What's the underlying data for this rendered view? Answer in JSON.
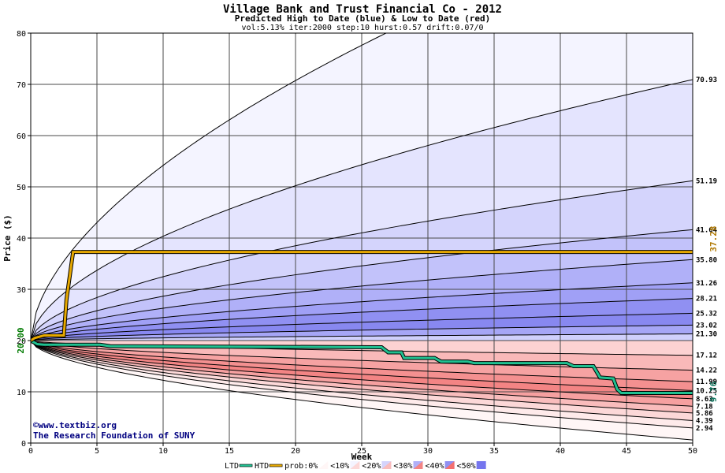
{
  "chart_data": {
    "type": "area",
    "title": "Village Bank and Trust Financial Co - 2012",
    "subtitle": "Predicted High to Date (blue) &  Low to Date (red)",
    "params": "vol:5.13% iter:2000 step:10 hurst:0.57 drift:0.07/0",
    "xlabel": "Week",
    "ylabel": "Price ($)",
    "xlim": [
      0,
      50
    ],
    "ylim": [
      0,
      80
    ],
    "x_ticks": [
      "0",
      "5",
      "10",
      "15",
      "20",
      "25",
      "30",
      "35",
      "40",
      "45",
      "50"
    ],
    "y_ticks": [
      "0",
      "10",
      "20",
      "30",
      "40",
      "50",
      "60",
      "70",
      "80"
    ],
    "grid": true,
    "start_price": 20,
    "start_label": "20.00",
    "high_curves": [
      {
        "label": "",
        "end": 130,
        "scale": 9.2
      },
      {
        "label": "70.93",
        "end": 70.93
      },
      {
        "label": "51.19",
        "end": 51.19
      },
      {
        "label": "41.64",
        "end": 41.64
      },
      {
        "label": "35.80",
        "end": 35.8
      },
      {
        "label": "31.26",
        "end": 31.26
      },
      {
        "label": "28.21",
        "end": 28.21
      },
      {
        "label": "25.32",
        "end": 25.32
      },
      {
        "label": "23.02",
        "end": 23.02
      },
      {
        "label": "21.30",
        "end": 21.3
      }
    ],
    "low_curves": [
      {
        "label": "17.12",
        "end": 17.12
      },
      {
        "label": "14.22",
        "end": 14.22
      },
      {
        "label": "11.99",
        "end": 11.99
      },
      {
        "label": "10.25",
        "end": 10.25
      },
      {
        "label": "8.63",
        "end": 8.63
      },
      {
        "label": "7.18",
        "end": 7.18
      },
      {
        "label": "5.86",
        "end": 5.86
      },
      {
        "label": "4.39",
        "end": 4.39
      },
      {
        "label": "2.94",
        "end": 2.94
      },
      {
        "label": "",
        "end": 0.6
      }
    ],
    "htd_series": {
      "name": "HTD",
      "value_label": "37.28",
      "color": "#e6a800",
      "points": [
        [
          0,
          20
        ],
        [
          0.3,
          20.5
        ],
        [
          1,
          21
        ],
        [
          2.5,
          21
        ],
        [
          2.7,
          28
        ],
        [
          3.2,
          37.28
        ],
        [
          50,
          37.28
        ]
      ]
    },
    "ltd_series": {
      "name": "LTD",
      "value_label": "9.76",
      "color": "#20c090",
      "points": [
        [
          0,
          20
        ],
        [
          0.5,
          19.3
        ],
        [
          1,
          19.2
        ],
        [
          5.2,
          19.2
        ],
        [
          6,
          18.9
        ],
        [
          26.5,
          18.7
        ],
        [
          27,
          17.7
        ],
        [
          28,
          17.7
        ],
        [
          28.2,
          16.6
        ],
        [
          30.5,
          16.6
        ],
        [
          31,
          15.9
        ],
        [
          33,
          15.9
        ],
        [
          33.5,
          15.6
        ],
        [
          40.5,
          15.6
        ],
        [
          41,
          15
        ],
        [
          42.5,
          15
        ],
        [
          43,
          12.8
        ],
        [
          44,
          12.6
        ],
        [
          44.3,
          10.5
        ],
        [
          44.6,
          9.76
        ],
        [
          50,
          9.76
        ]
      ]
    },
    "band_colors": {
      "high": [
        "#f4f4ff",
        "#e4e4fe",
        "#d4d4fc",
        "#c2c2fa",
        "#b0b0f8",
        "#a0a0f6",
        "#9090f2",
        "#8888f0",
        "#a6a6f6",
        "#d0d0fc"
      ],
      "low": [
        "#fcd2d2",
        "#f9b9b9",
        "#f6a2a2",
        "#f49090",
        "#f38484",
        "#f6a0a0",
        "#f9bcbc",
        "#fcd8d8",
        "#feeaea",
        "#fff6f6"
      ]
    },
    "legend": {
      "items": [
        {
          "label": "LTD",
          "swatch": "#20c090"
        },
        {
          "label": "HTD",
          "swatch": "#e6a800"
        },
        {
          "label": "prob:0%",
          "swatch": "#ffffff"
        },
        {
          "label": "<10%",
          "swatch": "#f4f4ff"
        },
        {
          "label": "<20%",
          "swatch": "#d4d4fc"
        },
        {
          "label": "<30%",
          "swatch": "#b0b0f8"
        },
        {
          "label": "<40%",
          "swatch": "#9090f2"
        },
        {
          "label": "<50%",
          "swatch": "#7676ee"
        }
      ],
      "low_swatches": [
        "#fff6f6",
        "#fcd8d8",
        "#f9bcbc",
        "#f38484",
        "#f47070"
      ]
    },
    "credit": {
      "line1": "©www.textbiz.org",
      "line2": "The Research Foundation of SUNY"
    }
  }
}
